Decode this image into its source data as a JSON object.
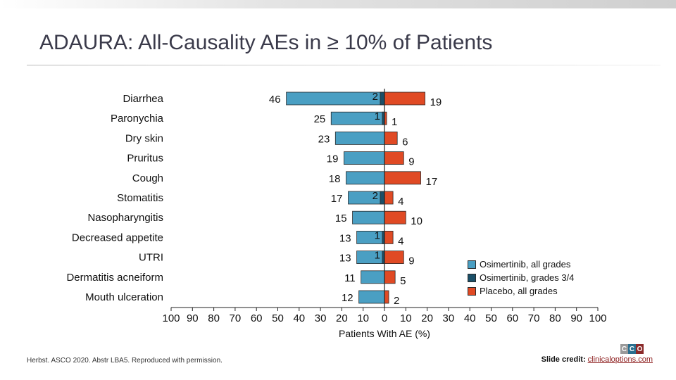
{
  "title": "ADAURA: All-Causality AEs in ≥ 10% of Patients",
  "chart_data": {
    "type": "bar",
    "orientation": "horizontal-butterfly",
    "categories": [
      "Diarrhea",
      "Paronychia",
      "Dry skin",
      "Pruritus",
      "Cough",
      "Stomatitis",
      "Nasopharyngitis",
      "Decreased appetite",
      "UTRI",
      "Dermatitis acneiform",
      "Mouth ulceration"
    ],
    "series": [
      {
        "name": "Osimertinib, all grades",
        "side": "left",
        "color": "#4a9fc3",
        "values": [
          46,
          25,
          23,
          19,
          18,
          17,
          15,
          13,
          13,
          11,
          12
        ]
      },
      {
        "name": "Osimertinib, grades 3/4",
        "side": "left",
        "color": "#1a4f68",
        "values": [
          2,
          1,
          null,
          null,
          null,
          2,
          null,
          1,
          1,
          null,
          null
        ]
      },
      {
        "name": "Placebo, all grades",
        "side": "right",
        "color": "#e04a24",
        "values": [
          19,
          1,
          6,
          9,
          17,
          4,
          10,
          4,
          9,
          5,
          2
        ]
      }
    ],
    "xlabel": "Patients With AE (%)",
    "ticks_left": [
      "100",
      "90",
      "80",
      "70",
      "60",
      "50",
      "40",
      "30",
      "20",
      "10"
    ],
    "ticks_right": [
      "0",
      "10",
      "20",
      "30",
      "40",
      "50",
      "60",
      "70",
      "80",
      "90",
      "100"
    ],
    "xlim": [
      -100,
      100
    ],
    "legend_position": "right"
  },
  "footnote": "Herbst. ASCO 2020. Abstr LBA5. Reproduced with permission.",
  "credit": {
    "label": "Slide credit:",
    "link": "clinicaloptions.com"
  },
  "logo": {
    "letters": [
      "C",
      "C",
      "O"
    ],
    "colors": [
      "#9a9a9a",
      "#2a6f8f",
      "#8b2a2a"
    ]
  }
}
